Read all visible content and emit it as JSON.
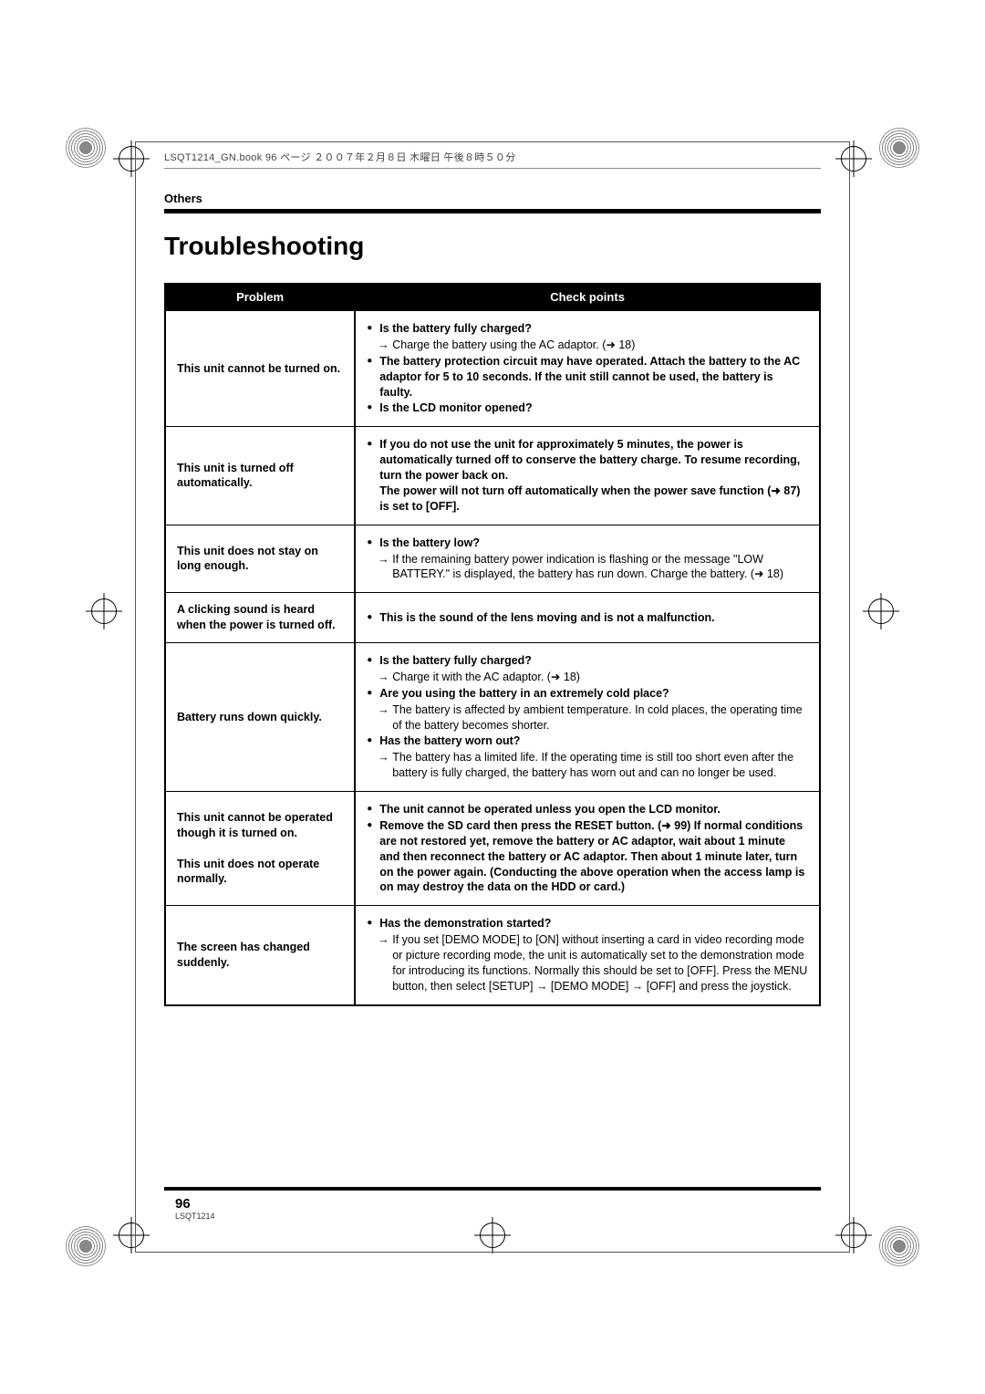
{
  "header_text": "LSQT1214_GN.book  96 ページ  ２００７年２月８日  木曜日  午後８時５０分",
  "section_label": "Others",
  "title": "Troubleshooting",
  "table": {
    "col_problem": "Problem",
    "col_check": "Check points",
    "rows": [
      {
        "problem": "This unit cannot be turned on.",
        "items": [
          {
            "type": "bull",
            "bold": true,
            "text": "Is the battery fully charged?"
          },
          {
            "type": "arrow",
            "bold": false,
            "text": "Charge the battery using the AC adaptor. (➜ 18)"
          },
          {
            "type": "bull",
            "bold": true,
            "text": "The battery protection circuit may have operated. Attach the battery to the AC adaptor for 5 to 10 seconds. If the unit still cannot be used, the battery is faulty."
          },
          {
            "type": "bull",
            "bold": true,
            "text": "Is the LCD monitor opened?"
          }
        ]
      },
      {
        "problem": "This unit is turned off automatically.",
        "items": [
          {
            "type": "bull",
            "bold": true,
            "text": "If you do not use the unit for approximately 5 minutes, the power is automatically turned off to conserve the battery charge. To resume recording, turn the power back on.\nThe power will not turn off automatically when the power save function (➜ 87) is set to [OFF]."
          }
        ]
      },
      {
        "problem": "This unit does not stay on long enough.",
        "items": [
          {
            "type": "bull",
            "bold": true,
            "text": "Is the battery low?"
          },
          {
            "type": "arrow",
            "bold": false,
            "text": "If the remaining battery power indication is flashing or the message \"LOW BATTERY.\" is displayed, the battery has run down. Charge the battery. (➜ 18)"
          }
        ]
      },
      {
        "problem": "A clicking sound is heard when the power is turned off.",
        "items": [
          {
            "type": "bull",
            "bold": true,
            "text": "This is the sound of the lens moving and is not a malfunction."
          }
        ]
      },
      {
        "problem": "Battery runs down quickly.",
        "items": [
          {
            "type": "bull",
            "bold": true,
            "text": "Is the battery fully charged?"
          },
          {
            "type": "arrow",
            "bold": false,
            "text": "Charge it with the AC adaptor. (➜ 18)"
          },
          {
            "type": "bull",
            "bold": true,
            "text": "Are you using the battery in an extremely cold place?"
          },
          {
            "type": "arrow",
            "bold": false,
            "text": "The battery is affected by ambient temperature. In cold places, the operating time of the battery becomes shorter."
          },
          {
            "type": "bull",
            "bold": true,
            "text": "Has the battery worn out?"
          },
          {
            "type": "arrow",
            "bold": false,
            "text": "The battery has a limited life. If the operating time is still too short even after the battery is fully charged, the battery has worn out and can no longer be used."
          }
        ]
      },
      {
        "problem": "This unit cannot be operated though it is turned on.\n\nThis unit does not operate normally.",
        "items": [
          {
            "type": "bull",
            "bold": true,
            "text": "The unit cannot be operated unless you open the LCD monitor."
          },
          {
            "type": "bull",
            "bold": true,
            "text": "Remove the SD card then press the RESET button. (➜ 99) If normal conditions are not restored yet, remove the battery or AC adaptor, wait about 1 minute and then reconnect the battery or AC adaptor. Then about 1 minute later, turn on the power again. (Conducting the above operation when the access lamp is on may destroy the data on the HDD or card.)"
          }
        ]
      },
      {
        "problem": "The screen has changed suddenly.",
        "items": [
          {
            "type": "bull",
            "bold": true,
            "text": "Has the demonstration started?"
          },
          {
            "type": "arrow",
            "bold": false,
            "text": "If you set [DEMO MODE] to [ON] without inserting a card in video recording mode or picture recording mode, the unit is automatically set to the demonstration mode for introducing its functions. Normally this should be set to [OFF]. Press the MENU button, then select [SETUP] → [DEMO MODE] → [OFF] and press the joystick."
          }
        ]
      }
    ]
  },
  "page_number": "96",
  "doc_id": "LSQT1214"
}
